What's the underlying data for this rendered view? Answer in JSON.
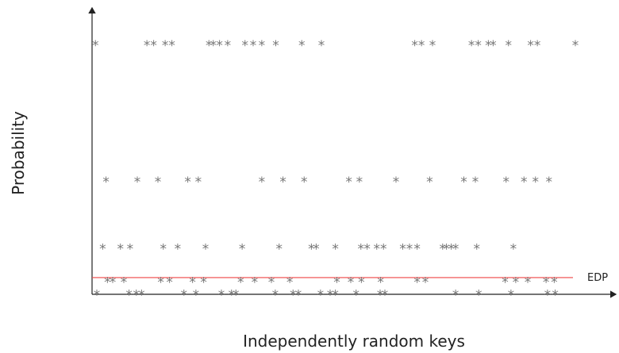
{
  "chart_data": {
    "type": "scatter",
    "title": "",
    "xlabel": "Independently random keys",
    "ylabel": "Probability",
    "threshold": {
      "label": "EDP",
      "y": 0.06,
      "color": "#ef4444"
    },
    "xlim": [
      0,
      100
    ],
    "ylim": [
      0,
      1
    ],
    "marker": "*",
    "marker_color": "#777777",
    "grid": false,
    "legend": "none",
    "series": [
      {
        "y": 0.9,
        "x": [
          0.7,
          11.4,
          12.8,
          15.2,
          16.6,
          24.3,
          25.2,
          26.5,
          28.2,
          31.8,
          33.5,
          35.3,
          38.2,
          43.6,
          47.7,
          67.1,
          68.5,
          70.8,
          78.9,
          80.3,
          82.4,
          83.4,
          86.6,
          91.2,
          92.6,
          100.5
        ]
      },
      {
        "y": 0.41,
        "x": [
          2.9,
          9.4,
          13.7,
          19.9,
          22.1,
          35.3,
          39.7,
          44.1,
          53.4,
          55.6,
          63.2,
          70.2,
          77.3,
          79.7,
          86.1,
          89.8,
          92.2,
          95.0
        ]
      },
      {
        "y": 0.17,
        "x": [
          2.2,
          5.9,
          7.9,
          14.8,
          17.8,
          23.6,
          31.2,
          38.9,
          45.6,
          46.6,
          50.6,
          55.9,
          57.2,
          59.2,
          60.6,
          64.6,
          66.0,
          67.6,
          72.9,
          73.7,
          74.7,
          75.6,
          80.0,
          87.6
        ]
      },
      {
        "y": 0.05,
        "x": [
          3.2,
          4.3,
          6.6,
          14.3,
          16.1,
          20.9,
          23.2,
          30.9,
          33.8,
          37.3,
          41.1,
          50.9,
          53.8,
          56.0,
          60.0,
          67.6,
          69.3,
          85.9,
          88.1,
          90.6,
          94.4,
          96.1
        ]
      },
      {
        "y": 0.004,
        "x": [
          1.0,
          7.7,
          9.2,
          10.3,
          19.1,
          21.6,
          26.9,
          29.0,
          29.9,
          38.1,
          41.8,
          42.9,
          47.5,
          49.5,
          50.6,
          54.9,
          59.9,
          60.9,
          75.6,
          80.4,
          87.1,
          94.7,
          96.3
        ]
      }
    ]
  }
}
